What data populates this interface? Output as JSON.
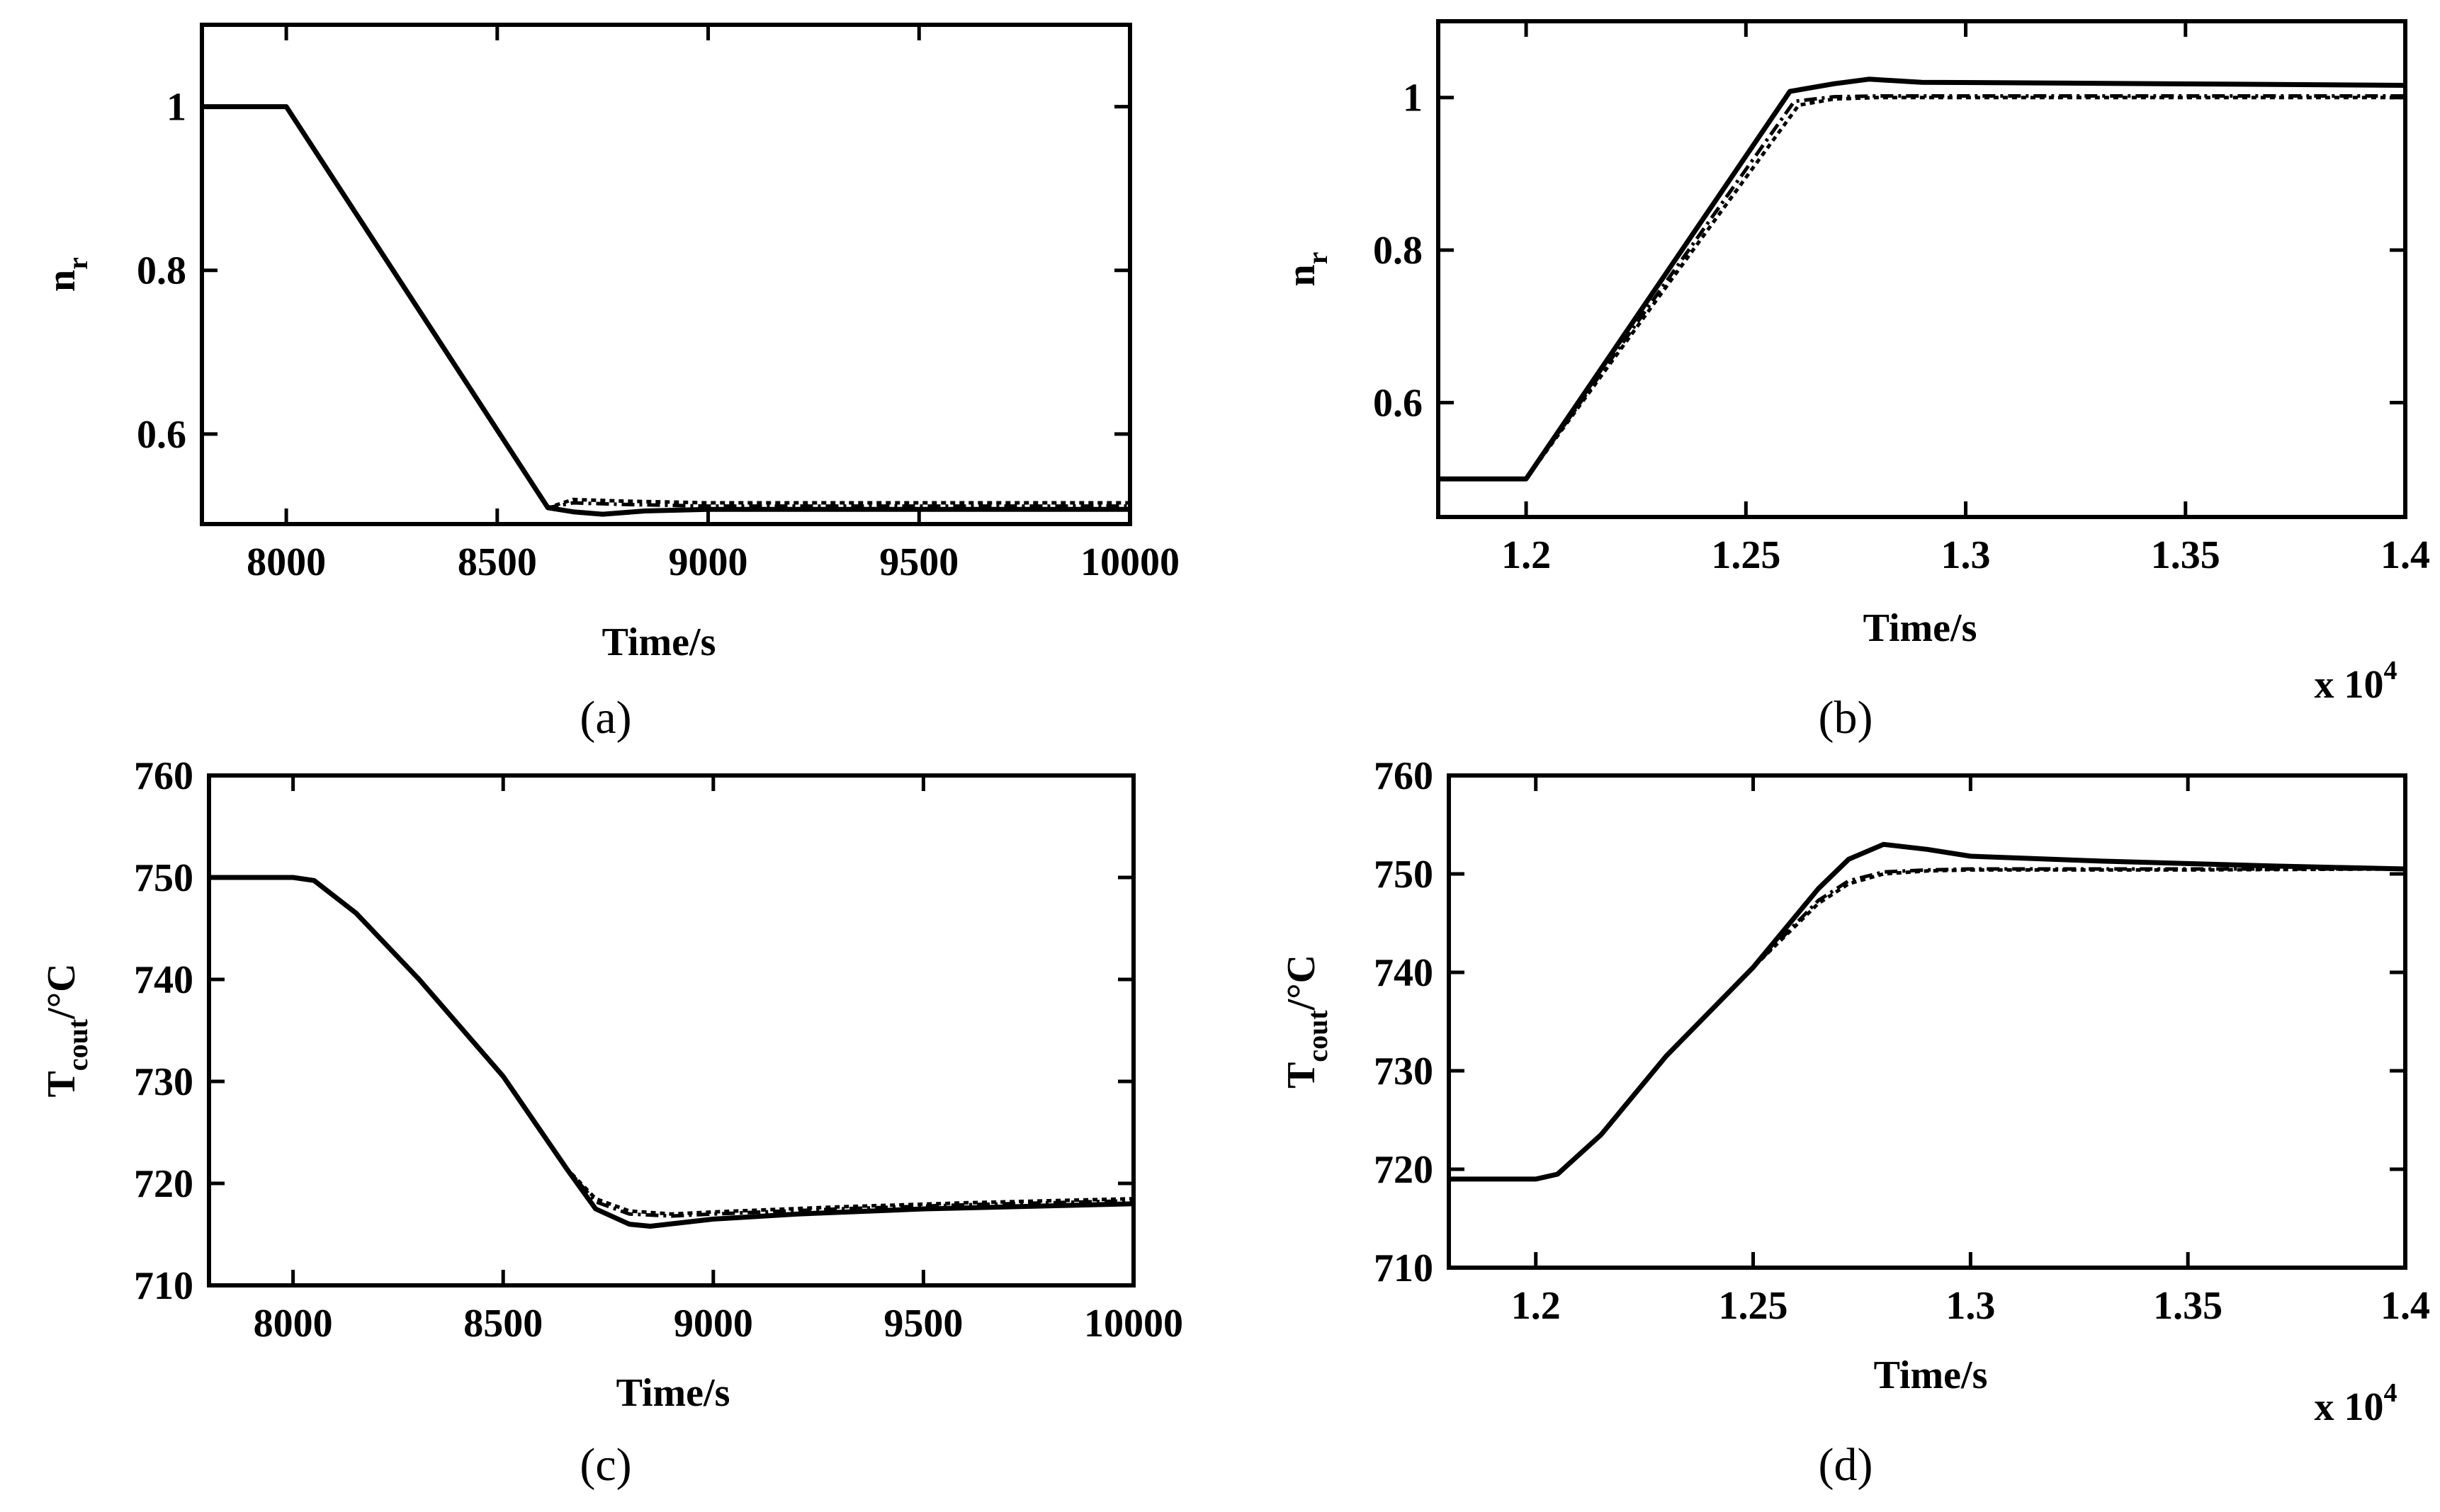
{
  "chart_data": [
    {
      "id": "a",
      "type": "line",
      "caption": "(a)",
      "xlabel": "Time/s",
      "ylabel_main": "n",
      "ylabel_sub": "r",
      "xlim": [
        7800,
        10000
      ],
      "ylim": [
        0.49,
        1.1
      ],
      "xticks": [
        8000,
        8500,
        9000,
        9500,
        10000
      ],
      "xtick_labels": [
        "8000",
        "8500",
        "9000",
        "9500",
        "10000"
      ],
      "yticks": [
        0.6,
        0.8,
        1.0
      ],
      "ytick_labels": [
        "0.6",
        "0.8",
        "1"
      ],
      "x_exponent_label": "",
      "series": [
        {
          "name": "solid",
          "style": "solid",
          "x": [
            7800,
            8000,
            8620,
            8680,
            8750,
            8850,
            9000,
            9500,
            10000
          ],
          "y": [
            1.0,
            1.0,
            0.51,
            0.505,
            0.502,
            0.506,
            0.508,
            0.508,
            0.508
          ]
        },
        {
          "name": "dotted",
          "style": "dotted",
          "x": [
            7800,
            8000,
            8620,
            8680,
            8800,
            9000,
            9500,
            10000
          ],
          "y": [
            1.0,
            1.0,
            0.51,
            0.52,
            0.518,
            0.516,
            0.516,
            0.516
          ]
        },
        {
          "name": "dash-dot",
          "style": "dashdot",
          "x": [
            7800,
            8000,
            8620,
            8680,
            8800,
            9000,
            9500,
            10000
          ],
          "y": [
            1.0,
            1.0,
            0.51,
            0.516,
            0.514,
            0.512,
            0.512,
            0.512
          ]
        }
      ]
    },
    {
      "id": "b",
      "type": "line",
      "caption": "(b)",
      "xlabel": "Time/s",
      "ylabel_main": "n",
      "ylabel_sub": "r",
      "xlim": [
        11800,
        14000
      ],
      "ylim": [
        0.45,
        1.1
      ],
      "xticks": [
        12000,
        12500,
        13000,
        13500,
        14000
      ],
      "xtick_labels": [
        "1.2",
        "1.25",
        "1.3",
        "1.35",
        "1.4"
      ],
      "yticks": [
        0.6,
        0.8,
        1.0
      ],
      "ytick_labels": [
        "0.6",
        "0.8",
        "1"
      ],
      "x_exponent_label": "x 10",
      "x_exponent_power": "4",
      "series": [
        {
          "name": "solid",
          "style": "solid",
          "x": [
            11800,
            12000,
            12600,
            12700,
            12780,
            12900,
            13200,
            14000
          ],
          "y": [
            0.5,
            0.5,
            1.008,
            1.018,
            1.024,
            1.02,
            1.019,
            1.016
          ]
        },
        {
          "name": "dotted",
          "style": "dotted",
          "x": [
            11800,
            12000,
            12620,
            12700,
            12800,
            13000,
            14000
          ],
          "y": [
            0.5,
            0.5,
            0.99,
            0.998,
            1.0,
            1.0,
            1.0
          ]
        },
        {
          "name": "dash-dot",
          "style": "dashdot",
          "x": [
            11800,
            12000,
            12610,
            12700,
            12800,
            13000,
            14000
          ],
          "y": [
            0.5,
            0.5,
            0.995,
            1.001,
            1.002,
            1.002,
            1.002
          ]
        }
      ]
    },
    {
      "id": "c",
      "type": "line",
      "caption": "(c)",
      "xlabel": "Time/s",
      "ylabel_main": "T",
      "ylabel_sub": "cout",
      "ylabel_suffix": "/°C",
      "xlim": [
        7800,
        10000
      ],
      "ylim": [
        710,
        760
      ],
      "xticks": [
        8000,
        8500,
        9000,
        9500,
        10000
      ],
      "xtick_labels": [
        "8000",
        "8500",
        "9000",
        "9500",
        "10000"
      ],
      "yticks": [
        710,
        720,
        730,
        740,
        750,
        760
      ],
      "ytick_labels": [
        "710",
        "720",
        "730",
        "740",
        "750",
        "760"
      ],
      "x_exponent_label": "",
      "series": [
        {
          "name": "solid",
          "style": "solid",
          "x": [
            7800,
            8000,
            8050,
            8150,
            8300,
            8500,
            8650,
            8720,
            8800,
            8850,
            9000,
            9200,
            9500,
            10000
          ],
          "y": [
            750,
            750,
            749.7,
            746.5,
            740,
            730.5,
            721.5,
            717.5,
            716,
            715.8,
            716.5,
            717,
            717.5,
            718
          ]
        },
        {
          "name": "dotted",
          "style": "dotted",
          "x": [
            7800,
            8000,
            8050,
            8150,
            8300,
            8500,
            8650,
            8720,
            8800,
            8900,
            9000,
            9300,
            9600,
            10000
          ],
          "y": [
            750,
            750,
            749.7,
            746.5,
            740,
            730.5,
            721.5,
            718.5,
            717.3,
            717,
            717.2,
            717.7,
            718.1,
            718.5
          ]
        },
        {
          "name": "dash-dot",
          "style": "dashdot",
          "x": [
            7800,
            8000,
            8050,
            8150,
            8300,
            8500,
            8650,
            8720,
            8800,
            8900,
            9000,
            9300,
            9600,
            10000
          ],
          "y": [
            750,
            750,
            749.7,
            746.5,
            740,
            730.5,
            721.5,
            718.2,
            717,
            716.8,
            717,
            717.5,
            717.9,
            718.3
          ]
        }
      ]
    },
    {
      "id": "d",
      "type": "line",
      "caption": "(d)",
      "xlabel": "Time/s",
      "ylabel_main": "T",
      "ylabel_sub": "cout",
      "ylabel_suffix": "/°C",
      "xlim": [
        11800,
        14000
      ],
      "ylim": [
        710,
        760
      ],
      "xticks": [
        12000,
        12500,
        13000,
        13500,
        14000
      ],
      "xtick_labels": [
        "1.2",
        "1.25",
        "1.3",
        "1.35",
        "1.4"
      ],
      "yticks": [
        710,
        720,
        730,
        740,
        750,
        760
      ],
      "ytick_labels": [
        "710",
        "720",
        "730",
        "740",
        "750",
        "760"
      ],
      "x_exponent_label": "x 10",
      "x_exponent_power": "4",
      "series": [
        {
          "name": "solid",
          "style": "solid",
          "x": [
            11800,
            12000,
            12050,
            12150,
            12300,
            12500,
            12650,
            12720,
            12800,
            12900,
            13000,
            13300,
            13700,
            14000
          ],
          "y": [
            719,
            719,
            719.5,
            723.5,
            731.5,
            740.5,
            748.5,
            751.5,
            753,
            752.5,
            751.8,
            751.3,
            750.8,
            750.5
          ]
        },
        {
          "name": "dotted",
          "style": "dotted",
          "x": [
            11800,
            12000,
            12050,
            12150,
            12300,
            12500,
            12650,
            12720,
            12800,
            12900,
            13000,
            13500,
            14000
          ],
          "y": [
            719,
            719,
            719.5,
            723.5,
            731.5,
            740.5,
            747,
            749,
            750,
            750.3,
            750.4,
            750.4,
            750.5
          ]
        },
        {
          "name": "dash-dot",
          "style": "dashdot",
          "x": [
            11800,
            12000,
            12050,
            12150,
            12300,
            12500,
            12650,
            12720,
            12800,
            12900,
            13000,
            13500,
            14000
          ],
          "y": [
            719,
            719,
            719.5,
            723.5,
            731.5,
            740.5,
            747.3,
            749.3,
            750.2,
            750.4,
            750.5,
            750.5,
            750.5
          ]
        }
      ]
    }
  ]
}
